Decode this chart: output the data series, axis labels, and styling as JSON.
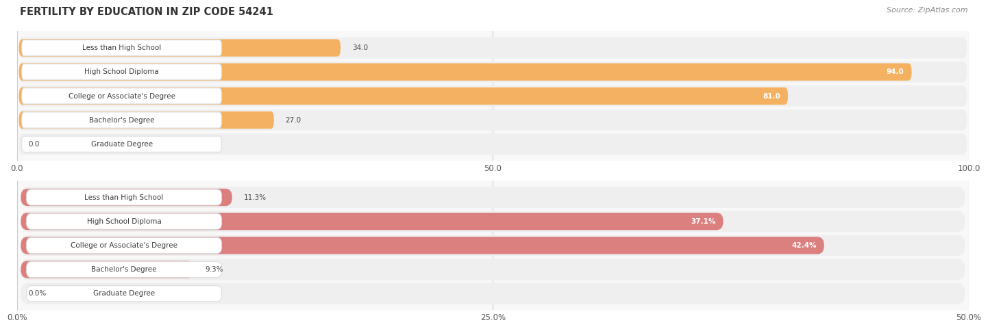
{
  "title": "FERTILITY BY EDUCATION IN ZIP CODE 54241",
  "source": "Source: ZipAtlas.com",
  "chart1": {
    "categories": [
      "Less than High School",
      "High School Diploma",
      "College or Associate's Degree",
      "Bachelor's Degree",
      "Graduate Degree"
    ],
    "values": [
      34.0,
      94.0,
      81.0,
      27.0,
      0.0
    ],
    "xlim": [
      0,
      100
    ],
    "xticks": [
      0.0,
      50.0,
      100.0
    ],
    "xtick_labels": [
      "0.0",
      "50.0",
      "100.0"
    ],
    "bar_color": "#F5A94E",
    "row_bg_color": "#EFEFEF",
    "label_bg_color": "#FFFFFF",
    "value_inside_color": "#FFFFFF",
    "value_outside_color": "#555555",
    "inside_threshold": 40
  },
  "chart2": {
    "categories": [
      "Less than High School",
      "High School Diploma",
      "College or Associate's Degree",
      "Bachelor's Degree",
      "Graduate Degree"
    ],
    "values": [
      11.3,
      37.1,
      42.4,
      9.3,
      0.0
    ],
    "xlim": [
      0,
      50
    ],
    "xticks": [
      0.0,
      25.0,
      50.0
    ],
    "xtick_labels": [
      "0.0%",
      "25.0%",
      "50.0%"
    ],
    "bar_color": "#D97070",
    "row_bg_color": "#EFEFEF",
    "label_bg_color": "#FFFFFF",
    "value_inside_color": "#FFFFFF",
    "value_outside_color": "#555555",
    "inside_threshold": 20,
    "show_percent": true
  },
  "title_fontsize": 10.5,
  "source_fontsize": 8,
  "label_fontsize": 7.5,
  "value_fontsize": 7.5
}
